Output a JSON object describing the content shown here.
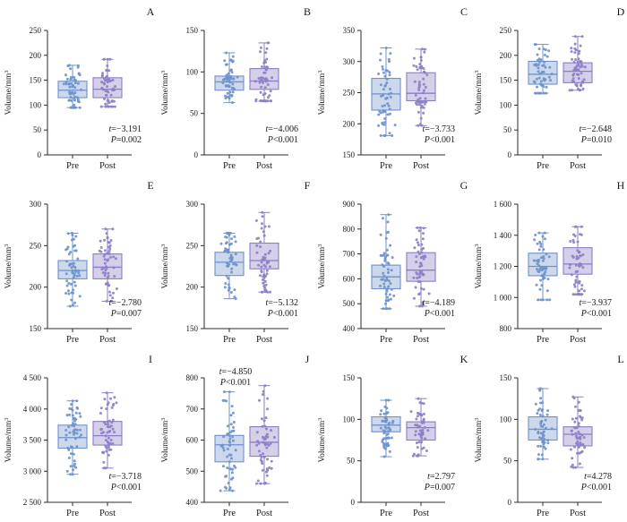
{
  "figure": {
    "ylabel": "Volume/mm",
    "ylabel_superscript": "3",
    "categories": [
      "Pre",
      "Post"
    ],
    "colors": {
      "pre_stroke": "#7390c9",
      "pre_fill": "#ccd8ec",
      "pre_point": "#6f92cc",
      "post_stroke": "#8a7ec5",
      "post_fill": "#d5cfe9",
      "post_point": "#8d80c6",
      "axis": "#2b2b2b",
      "text": "#1a1a1a"
    }
  },
  "chart_data": [
    {
      "label": "A",
      "type": "box",
      "ylim": [
        0,
        250
      ],
      "yticks": [
        0,
        50,
        100,
        150,
        200,
        250
      ],
      "stats": {
        "t": "t=−3.191",
        "p": "P=0.002"
      },
      "stats_pos": "br",
      "series": [
        {
          "name": "Pre",
          "min": 95,
          "q1": 115,
          "median": 130,
          "q3": 148,
          "max": 180,
          "n": 55
        },
        {
          "name": "Post",
          "min": 97,
          "q1": 115,
          "median": 132,
          "q3": 155,
          "max": 192,
          "n": 55
        }
      ]
    },
    {
      "label": "B",
      "type": "box",
      "ylim": [
        0,
        150
      ],
      "yticks": [
        0,
        50,
        100,
        150
      ],
      "stats": {
        "t": "t=−4.006",
        "p": "P<0.001"
      },
      "stats_pos": "br",
      "series": [
        {
          "name": "Pre",
          "min": 63,
          "q1": 78,
          "median": 88,
          "q3": 95,
          "max": 123,
          "n": 55
        },
        {
          "name": "Post",
          "min": 65,
          "q1": 79,
          "median": 89,
          "q3": 104,
          "max": 135,
          "n": 55
        }
      ]
    },
    {
      "label": "C",
      "type": "box",
      "ylim": [
        150,
        350
      ],
      "yticks": [
        150,
        200,
        250,
        300,
        350
      ],
      "stats": {
        "t": "t=−3.733",
        "p": "P<0.001"
      },
      "stats_pos": "br",
      "series": [
        {
          "name": "Pre",
          "min": 181,
          "q1": 222,
          "median": 248,
          "q3": 273,
          "max": 322,
          "n": 55
        },
        {
          "name": "Post",
          "min": 197,
          "q1": 237,
          "median": 249,
          "q3": 282,
          "max": 320,
          "n": 55
        }
      ]
    },
    {
      "label": "D",
      "type": "box",
      "ylim": [
        0,
        250
      ],
      "yticks": [
        0,
        50,
        100,
        150,
        200,
        250
      ],
      "stats": {
        "t": "t=−2.648",
        "p": "P=0.010"
      },
      "stats_pos": "br",
      "series": [
        {
          "name": "Pre",
          "min": 124,
          "q1": 142,
          "median": 162,
          "q3": 188,
          "max": 222,
          "n": 55
        },
        {
          "name": "Post",
          "min": 130,
          "q1": 145,
          "median": 168,
          "q3": 185,
          "max": 238,
          "n": 55
        }
      ]
    },
    {
      "label": "E",
      "type": "box",
      "ylim": [
        150,
        300
      ],
      "yticks": [
        150,
        200,
        250,
        300
      ],
      "stats": {
        "t": "t=−2.780",
        "p": "P=0.007"
      },
      "stats_pos": "br",
      "series": [
        {
          "name": "Pre",
          "min": 177,
          "q1": 210,
          "median": 220,
          "q3": 232,
          "max": 265,
          "n": 55
        },
        {
          "name": "Post",
          "min": 183,
          "q1": 210,
          "median": 224,
          "q3": 240,
          "max": 270,
          "n": 55
        }
      ]
    },
    {
      "label": "F",
      "type": "box",
      "ylim": [
        150,
        300
      ],
      "yticks": [
        150,
        200,
        250,
        300
      ],
      "stats": {
        "t": "t=−5.132",
        "p": "P<0.001"
      },
      "stats_pos": "br",
      "series": [
        {
          "name": "Pre",
          "min": 186,
          "q1": 214,
          "median": 230,
          "q3": 242,
          "max": 265,
          "n": 55
        },
        {
          "name": "Post",
          "min": 194,
          "q1": 222,
          "median": 232,
          "q3": 253,
          "max": 290,
          "n": 55
        }
      ]
    },
    {
      "label": "G",
      "type": "box",
      "ylim": [
        400,
        900
      ],
      "yticks": [
        400,
        500,
        600,
        700,
        800,
        900
      ],
      "stats": {
        "t": "t=−4.189",
        "p": "P<0.001"
      },
      "stats_pos": "br",
      "series": [
        {
          "name": "Pre",
          "min": 480,
          "q1": 560,
          "median": 608,
          "q3": 655,
          "max": 858,
          "n": 55
        },
        {
          "name": "Post",
          "min": 490,
          "q1": 590,
          "median": 635,
          "q3": 705,
          "max": 805,
          "n": 55
        }
      ]
    },
    {
      "label": "H",
      "type": "box",
      "ylim": [
        800,
        1600
      ],
      "yticks": [
        800,
        1000,
        1200,
        1400,
        1600
      ],
      "stats": {
        "t": "t=−3.937",
        "p": "P<0.001"
      },
      "stats_pos": "br",
      "series": [
        {
          "name": "Pre",
          "min": 985,
          "q1": 1140,
          "median": 1200,
          "q3": 1285,
          "max": 1415,
          "n": 55
        },
        {
          "name": "Post",
          "min": 1020,
          "q1": 1150,
          "median": 1215,
          "q3": 1320,
          "max": 1455,
          "n": 55
        }
      ]
    },
    {
      "label": "I",
      "type": "box",
      "ylim": [
        2500,
        4500
      ],
      "yticks": [
        2500,
        3000,
        3500,
        4000,
        4500
      ],
      "stats": {
        "t": "t=−3.718",
        "p": "P<0.001"
      },
      "stats_pos": "br",
      "series": [
        {
          "name": "Pre",
          "min": 2950,
          "q1": 3370,
          "median": 3540,
          "q3": 3740,
          "max": 4130,
          "n": 55
        },
        {
          "name": "Post",
          "min": 3050,
          "q1": 3420,
          "median": 3570,
          "q3": 3800,
          "max": 4260,
          "n": 55
        }
      ]
    },
    {
      "label": "J",
      "type": "box",
      "ylim": [
        400,
        800
      ],
      "yticks": [
        400,
        500,
        600,
        700,
        800
      ],
      "stats": {
        "t": "t=−4.850",
        "p": "P<0.001"
      },
      "stats_pos": "top",
      "series": [
        {
          "name": "Pre",
          "min": 437,
          "q1": 530,
          "median": 585,
          "q3": 615,
          "max": 755,
          "n": 55
        },
        {
          "name": "Post",
          "min": 460,
          "q1": 548,
          "median": 593,
          "q3": 643,
          "max": 775,
          "n": 55
        }
      ]
    },
    {
      "label": "K",
      "type": "box",
      "ylim": [
        0,
        150
      ],
      "yticks": [
        0,
        50,
        100,
        150
      ],
      "stats": {
        "t": "t=2.797",
        "p": "P=0.007"
      },
      "stats_pos": "br",
      "series": [
        {
          "name": "Pre",
          "min": 55,
          "q1": 85,
          "median": 93,
          "q3": 103,
          "max": 123,
          "n": 55
        },
        {
          "name": "Post",
          "min": 56,
          "q1": 75,
          "median": 90,
          "q3": 97,
          "max": 125,
          "n": 55
        }
      ]
    },
    {
      "label": "L",
      "type": "box",
      "ylim": [
        0,
        150
      ],
      "yticks": [
        0,
        50,
        100,
        150
      ],
      "stats": {
        "t": "t=4.278",
        "p": "P<0.001"
      },
      "stats_pos": "br",
      "series": [
        {
          "name": "Pre",
          "min": 52,
          "q1": 75,
          "median": 88,
          "q3": 103,
          "max": 137,
          "n": 55
        },
        {
          "name": "Post",
          "min": 42,
          "q1": 68,
          "median": 82,
          "q3": 91,
          "max": 127,
          "n": 55
        }
      ]
    }
  ]
}
